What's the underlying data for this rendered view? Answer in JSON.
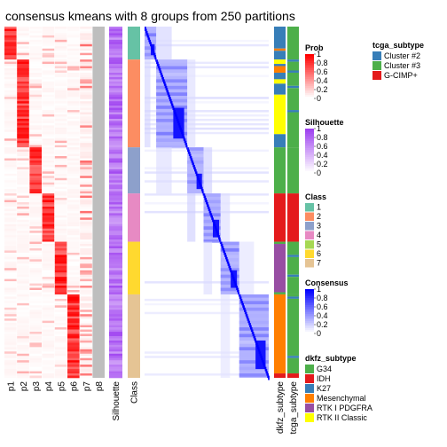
{
  "chart_data": {
    "type": "heatmap",
    "title": "consensus kmeans with 8 groups from 250 partitions",
    "n_samples": 160,
    "membership_columns": [
      "p1",
      "p2",
      "p3",
      "p4",
      "p5",
      "p6",
      "p7",
      "p8"
    ],
    "silhouette_label": "Silhouette",
    "class_label": "Class",
    "annotation_labels": [
      "dkfz_subtype",
      "tcga_subtype"
    ],
    "class_counts": [
      {
        "class": 1,
        "count": 15
      },
      {
        "class": 2,
        "count": 40
      },
      {
        "class": 3,
        "count": 21
      },
      {
        "class": 4,
        "count": 22
      },
      {
        "class": 6,
        "count": 24
      },
      {
        "class": 7,
        "count": 38
      }
    ],
    "dkfz_by_class": {
      "1": [
        {
          "v": "K27",
          "n": 10
        },
        {
          "v": "Mesenchymal",
          "n": 1
        },
        {
          "v": "K27",
          "n": 4
        }
      ],
      "2": [
        {
          "v": "RTK II Classic",
          "n": 2
        },
        {
          "v": "K27",
          "n": 1
        },
        {
          "v": "Mesenchymal",
          "n": 3
        },
        {
          "v": "K27",
          "n": 3
        },
        {
          "v": "RTK II Classic",
          "n": 2
        },
        {
          "v": "K27",
          "n": 5
        },
        {
          "v": "RTK II Classic",
          "n": 18
        },
        {
          "v": "K27",
          "n": 6
        }
      ],
      "3": [
        {
          "v": "G34",
          "n": 21
        }
      ],
      "4": [
        {
          "v": "IDH",
          "n": 22
        }
      ],
      "6": [
        {
          "v": "G34",
          "n": 1
        },
        {
          "v": "RTK I PDGFRA",
          "n": 22
        },
        {
          "v": "G34",
          "n": 1
        }
      ],
      "7": [
        {
          "v": "Mesenchymal",
          "n": 36
        },
        {
          "v": "IDH",
          "n": 2
        }
      ]
    },
    "tcga_by_class": {
      "1": [
        {
          "v": "Cluster #3",
          "n": 15
        }
      ],
      "2": [
        {
          "v": "Cluster #2",
          "n": 1
        },
        {
          "v": "Cluster #3",
          "n": 4
        },
        {
          "v": "Cluster #2",
          "n": 1
        },
        {
          "v": "Cluster #3",
          "n": 6
        },
        {
          "v": "Cluster #2",
          "n": 1
        },
        {
          "v": "Cluster #3",
          "n": 10
        },
        {
          "v": "Cluster #2",
          "n": 1
        },
        {
          "v": "Cluster #3",
          "n": 16
        }
      ],
      "3": [
        {
          "v": "Cluster #3",
          "n": 21
        }
      ],
      "4": [
        {
          "v": "G-CIMP+",
          "n": 22
        }
      ],
      "6": [
        {
          "v": "Cluster #3",
          "n": 6
        },
        {
          "v": "Cluster #2",
          "n": 1
        },
        {
          "v": "Cluster #3",
          "n": 8
        },
        {
          "v": "Cluster #2",
          "n": 1
        },
        {
          "v": "Cluster #3",
          "n": 8
        }
      ],
      "7": [
        {
          "v": "Cluster #3",
          "n": 1
        },
        {
          "v": "Cluster #2",
          "n": 1
        },
        {
          "v": "Cluster #3",
          "n": 26
        },
        {
          "v": "Cluster #2",
          "n": 1
        },
        {
          "v": "Cluster #3",
          "n": 7
        },
        {
          "v": "G-CIMP+",
          "n": 2
        }
      ]
    },
    "color_ranges": {
      "prob": [
        0,
        1
      ],
      "silhouette": [
        0,
        1
      ],
      "consensus": [
        0,
        1
      ]
    },
    "legends": {
      "prob": {
        "title": "Prob",
        "ticks": [
          "1",
          "0.8",
          "0.6",
          "0.4",
          "0.2",
          "0"
        ]
      },
      "silhouette": {
        "title": "Silhouette",
        "ticks": [
          "1",
          "0.8",
          "0.6",
          "0.4",
          "0.2",
          "0"
        ]
      },
      "class": {
        "title": "Class",
        "items": [
          {
            "label": "1",
            "color": "#66C2A5"
          },
          {
            "label": "2",
            "color": "#FC8D62"
          },
          {
            "label": "3",
            "color": "#8DA0CB"
          },
          {
            "label": "4",
            "color": "#E78AC3"
          },
          {
            "label": "5",
            "color": "#A6D854"
          },
          {
            "label": "6",
            "color": "#FFD92F"
          },
          {
            "label": "7",
            "color": "#E5C494"
          }
        ]
      },
      "consensus": {
        "title": "Consensus",
        "ticks": [
          "1",
          "0.8",
          "0.6",
          "0.4",
          "0.2",
          "0"
        ]
      },
      "dkfz_subtype": {
        "title": "dkfz_subtype",
        "items": [
          {
            "label": "G34",
            "color": "#4DAF4A"
          },
          {
            "label": "IDH",
            "color": "#E41A1C"
          },
          {
            "label": "K27",
            "color": "#377EB8"
          },
          {
            "label": "Mesenchymal",
            "color": "#FF7F00"
          },
          {
            "label": "RTK I PDGFRA",
            "color": "#984EA3"
          },
          {
            "label": "RTK II Classic",
            "color": "#FFFF00"
          }
        ]
      },
      "tcga_subtype": {
        "title": "tcga_subtype",
        "items": [
          {
            "label": "Cluster #2",
            "color": "#377EB8"
          },
          {
            "label": "Cluster #3",
            "color": "#4DAF4A"
          },
          {
            "label": "G-CIMP+",
            "color": "#E41A1C"
          }
        ]
      }
    },
    "colors": {
      "prob_low": "#FFFFFF",
      "prob_high": "#FF0000",
      "silhouette_low": "#FFFFFF",
      "silhouette_high": "#9E40F0",
      "consensus_low": "#FFFFFF",
      "consensus_high": "#0000FF",
      "p8": "#BEBEBE"
    }
  }
}
